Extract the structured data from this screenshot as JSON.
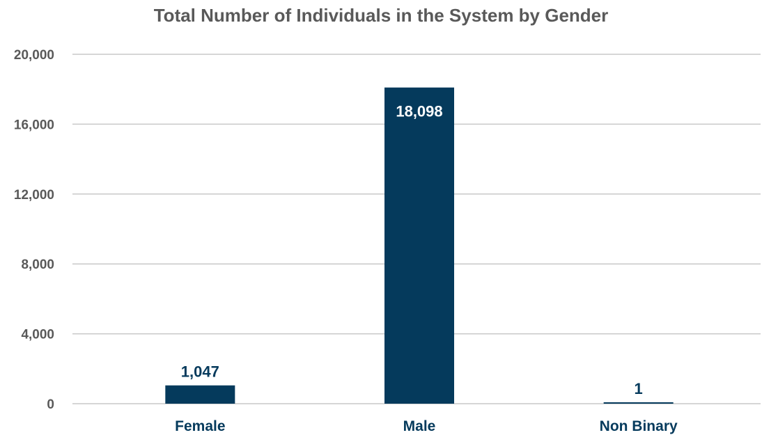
{
  "chart_data": {
    "type": "bar",
    "title": "Total Number of Individuals in the System by Gender",
    "xlabel": "",
    "ylabel": "",
    "categories": [
      "Female",
      "Male",
      "Non Binary"
    ],
    "values": [
      1047,
      18098,
      1
    ],
    "data_labels": [
      "1,047",
      "18,098",
      "1"
    ],
    "ylim": [
      0,
      20000
    ],
    "yticks": [
      0,
      4000,
      8000,
      12000,
      16000,
      20000
    ],
    "ytick_labels": [
      "0",
      "4,000",
      "8,000",
      "12,000",
      "16,000",
      "20,000"
    ],
    "grid": true,
    "legend": "none"
  },
  "colors": {
    "bar": "#053a5c",
    "title": "#595959",
    "tick_label": "#595959",
    "category_label": "#053a5c",
    "gridline": "#c8c8c8",
    "label_inside": "#ffffff",
    "label_outside": "#053a5c"
  }
}
